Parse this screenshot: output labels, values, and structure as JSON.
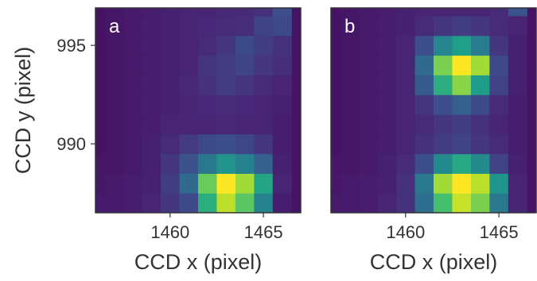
{
  "chart_data": [
    {
      "type": "heatmap",
      "panel_label": "a",
      "xlabel": "CCD x (pixel)",
      "ylabel": "CCD y (pixel)",
      "x_start": 1456,
      "y_start": 987,
      "xlim": [
        1456,
        1467
      ],
      "ylim": [
        986.5,
        996.9
      ],
      "xticks": [
        1460,
        1465
      ],
      "yticks": [
        990,
        995
      ],
      "colormap": "viridis",
      "values": [
        [
          0.07,
          0.07,
          0.08,
          0.1,
          0.16,
          0.22,
          0.62,
          0.9,
          0.74,
          0.45,
          0.08
        ],
        [
          0.06,
          0.07,
          0.08,
          0.09,
          0.18,
          0.34,
          0.77,
          1.0,
          0.86,
          0.58,
          0.1
        ],
        [
          0.06,
          0.06,
          0.07,
          0.09,
          0.16,
          0.26,
          0.4,
          0.52,
          0.44,
          0.3,
          0.09
        ],
        [
          0.05,
          0.06,
          0.07,
          0.09,
          0.12,
          0.17,
          0.22,
          0.24,
          0.21,
          0.16,
          0.08
        ],
        [
          0.05,
          0.06,
          0.07,
          0.08,
          0.1,
          0.1,
          0.1,
          0.11,
          0.1,
          0.1,
          0.08
        ],
        [
          0.05,
          0.06,
          0.07,
          0.08,
          0.09,
          0.1,
          0.11,
          0.12,
          0.11,
          0.1,
          0.09
        ],
        [
          0.05,
          0.06,
          0.07,
          0.08,
          0.09,
          0.11,
          0.14,
          0.18,
          0.15,
          0.12,
          0.1
        ],
        [
          0.05,
          0.06,
          0.07,
          0.08,
          0.09,
          0.1,
          0.15,
          0.18,
          0.2,
          0.16,
          0.13
        ],
        [
          0.05,
          0.06,
          0.07,
          0.08,
          0.09,
          0.1,
          0.12,
          0.16,
          0.22,
          0.18,
          0.14
        ],
        [
          0.05,
          0.06,
          0.07,
          0.08,
          0.09,
          0.1,
          0.11,
          0.12,
          0.13,
          0.2,
          0.22
        ],
        [
          0.05,
          0.06,
          0.07,
          0.08,
          0.09,
          0.1,
          0.1,
          0.11,
          0.12,
          0.14,
          0.24
        ]
      ]
    },
    {
      "type": "heatmap",
      "panel_label": "b",
      "xlabel": "CCD x (pixel)",
      "ylabel": "",
      "x_start": 1456,
      "y_start": 987,
      "xlim": [
        1456,
        1467
      ],
      "ylim": [
        986.5,
        996.9
      ],
      "xticks": [
        1460,
        1465
      ],
      "yticks": [],
      "colormap": "viridis",
      "values": [
        [
          0.07,
          0.07,
          0.08,
          0.1,
          0.14,
          0.36,
          0.7,
          0.92,
          0.8,
          0.4,
          0.1
        ],
        [
          0.06,
          0.07,
          0.08,
          0.09,
          0.14,
          0.4,
          0.86,
          1.0,
          0.9,
          0.52,
          0.1
        ],
        [
          0.06,
          0.06,
          0.07,
          0.09,
          0.12,
          0.24,
          0.48,
          0.6,
          0.48,
          0.2,
          0.09
        ],
        [
          0.05,
          0.06,
          0.07,
          0.08,
          0.1,
          0.14,
          0.18,
          0.2,
          0.16,
          0.12,
          0.08
        ],
        [
          0.05,
          0.06,
          0.07,
          0.08,
          0.1,
          0.12,
          0.16,
          0.18,
          0.14,
          0.1,
          0.08
        ],
        [
          0.05,
          0.06,
          0.07,
          0.08,
          0.1,
          0.16,
          0.24,
          0.3,
          0.22,
          0.12,
          0.08
        ],
        [
          0.05,
          0.06,
          0.07,
          0.08,
          0.1,
          0.28,
          0.62,
          0.82,
          0.55,
          0.2,
          0.09
        ],
        [
          0.05,
          0.06,
          0.07,
          0.08,
          0.1,
          0.34,
          0.8,
          1.0,
          0.86,
          0.22,
          0.09
        ],
        [
          0.05,
          0.06,
          0.07,
          0.08,
          0.1,
          0.24,
          0.46,
          0.56,
          0.42,
          0.16,
          0.09
        ],
        [
          0.05,
          0.06,
          0.07,
          0.08,
          0.09,
          0.12,
          0.16,
          0.18,
          0.16,
          0.12,
          0.1
        ],
        [
          0.05,
          0.06,
          0.07,
          0.08,
          0.09,
          0.1,
          0.1,
          0.1,
          0.1,
          0.12,
          0.26
        ]
      ]
    }
  ]
}
